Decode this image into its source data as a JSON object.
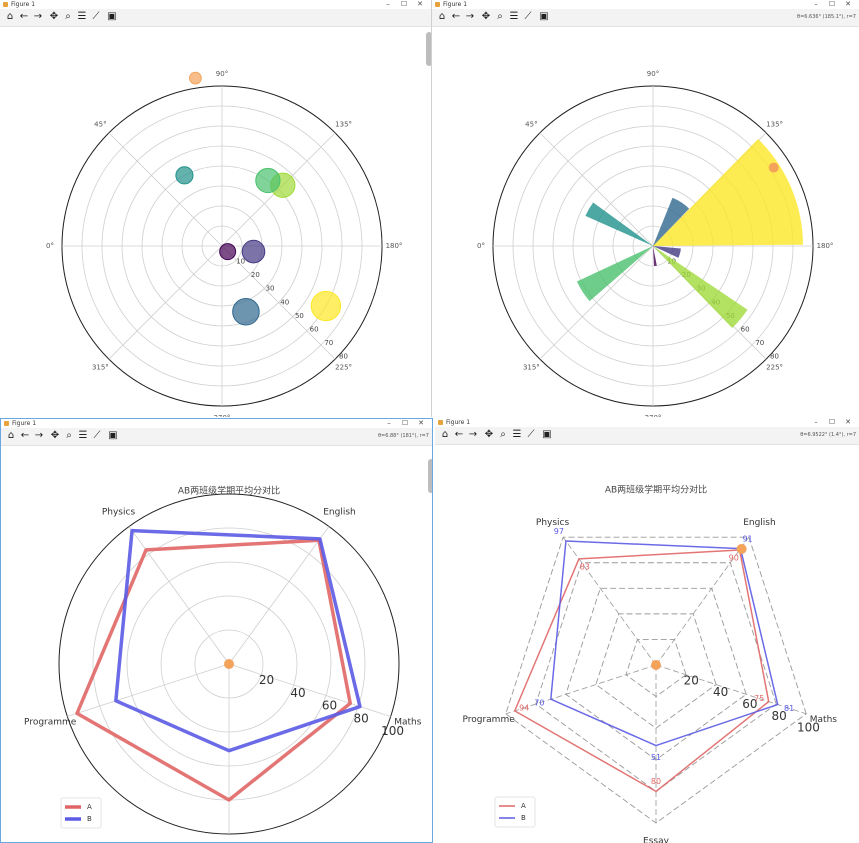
{
  "windows": [
    {
      "title": "Figure 1",
      "coords": ""
    },
    {
      "title": "Figure 1",
      "coords": "θ=6.636° (185.1°), r=7"
    },
    {
      "title": "Figure 1",
      "coords": "θ=6.88° (181°), r=7"
    },
    {
      "title": "Figure 1",
      "coords": "θ=6.9522° (1.4°), r=7"
    }
  ],
  "window_controls": {
    "minimize": "–",
    "maximize": "☐",
    "close": "✕"
  },
  "toolbar_icons": [
    "home-icon",
    "back-arrow-icon",
    "forward-arrow-icon",
    "pan-icon",
    "zoom-icon",
    "configure-subplots-icon",
    "edit-axis-icon",
    "save-icon"
  ],
  "chart_data": [
    {
      "type": "scatter",
      "polar": true,
      "theta_direction": "clockwise",
      "theta_zero_location": "W",
      "theta_tick_labels": [
        "180°",
        "135°",
        "90°",
        "45°",
        "0°",
        "315°",
        "270°",
        "225°"
      ],
      "r_tick_labels": [
        "10",
        "20",
        "30",
        "40",
        "50",
        "60",
        "70",
        "80"
      ],
      "rlim": [
        0,
        80
      ],
      "colormap": "viridis",
      "points": [
        {
          "theta": 210,
          "r": 60,
          "size": 440,
          "color": "#fde725"
        },
        {
          "theta": 135,
          "r": 43,
          "size": 300,
          "color": "#a0da39"
        },
        {
          "theta": 125,
          "r": 40,
          "size": 300,
          "color": "#4ac16d"
        },
        {
          "theta": 250,
          "r": 35,
          "size": 360,
          "color": "#31688e"
        },
        {
          "theta": 190,
          "r": 16,
          "size": 260,
          "color": "#443983"
        },
        {
          "theta": 225,
          "r": 4,
          "size": 130,
          "color": "#440154"
        },
        {
          "theta": 62,
          "r": 40,
          "size": 150,
          "color": "#21918c"
        },
        {
          "theta": 81,
          "r": 85,
          "size": 70,
          "color": "#f4a35a"
        }
      ]
    },
    {
      "type": "bar",
      "polar": true,
      "theta_direction": "clockwise",
      "theta_zero_location": "W",
      "theta_tick_labels": [
        "180°",
        "135°",
        "90°",
        "45°",
        "0°",
        "315°",
        "270°",
        "225°"
      ],
      "r_tick_labels": [
        "10",
        "20",
        "30",
        "40",
        "50",
        "60",
        "70",
        "80"
      ],
      "rlim": [
        0,
        80
      ],
      "colormap": "viridis",
      "bars": [
        {
          "theta_center": 157,
          "width": 45,
          "r": 75,
          "color": "#fde725"
        },
        {
          "theta_center": 220,
          "width": 12,
          "r": 57,
          "color": "#a0da39"
        },
        {
          "theta_center": 123,
          "width": 22,
          "r": 26,
          "color": "#31688e"
        },
        {
          "theta_center": 195,
          "width": 20,
          "r": 14,
          "color": "#443983"
        },
        {
          "theta_center": 263,
          "width": 8,
          "r": 10,
          "color": "#440154"
        },
        {
          "theta_center": 327,
          "width": 16,
          "r": 42,
          "color": "#4ac16d"
        },
        {
          "theta_center": 30,
          "width": 12,
          "r": 37,
          "color": "#21918c"
        }
      ],
      "markers": [
        {
          "theta": 147,
          "r": 72,
          "color": "#f4a35a"
        }
      ]
    },
    {
      "type": "line",
      "polar": true,
      "radar": true,
      "title": "AB两班级学期平均分对比",
      "categories": [
        "Maths",
        "English",
        "Physics",
        "Programme",
        "Essay"
      ],
      "rlim": [
        0,
        100
      ],
      "r_tick_labels": [
        "20",
        "40",
        "60",
        "80",
        "100"
      ],
      "series": [
        {
          "name": "A",
          "values": [
            75,
            90,
            83,
            94,
            80
          ],
          "color": "#e06666"
        },
        {
          "name": "B",
          "values": [
            81,
            91,
            97,
            70,
            51
          ],
          "color": "#5b5be6"
        }
      ],
      "legend": "lower-left",
      "marker_color": "#f4a35a"
    },
    {
      "type": "line",
      "polar": true,
      "radar": true,
      "title": "AB两班级学期平均分对比",
      "categories": [
        "Maths",
        "English",
        "Physics",
        "Programme",
        "Essay"
      ],
      "rlim": [
        0,
        100
      ],
      "r_tick_labels": [
        "20",
        "40",
        "60",
        "80",
        "100"
      ],
      "series": [
        {
          "name": "A",
          "values": [
            75,
            90,
            83,
            94,
            80
          ],
          "color": "#e06666"
        },
        {
          "name": "B",
          "values": [
            81,
            91,
            97,
            70,
            51
          ],
          "color": "#5b5be6"
        }
      ],
      "legend": "lower-left",
      "grid_style": "dashed-polygon",
      "marker_color": "#f4a35a"
    }
  ]
}
